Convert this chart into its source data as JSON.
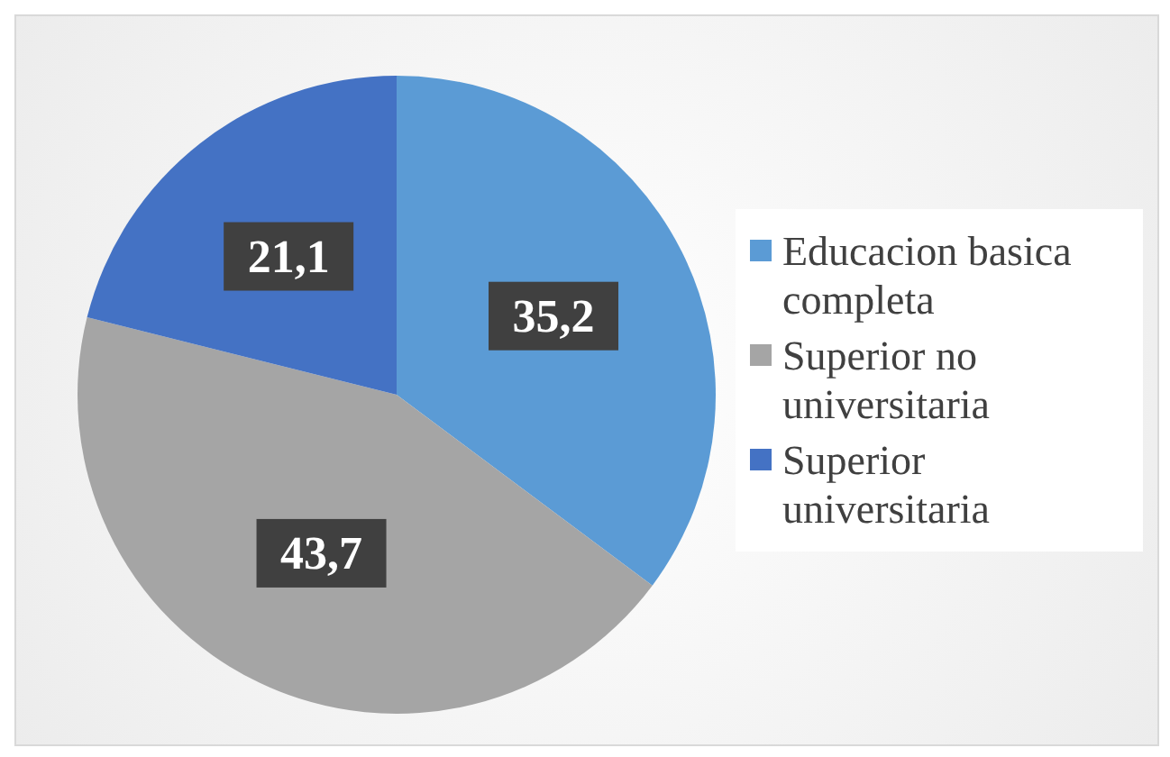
{
  "chart_data": {
    "type": "pie",
    "categories": [
      "Educacion basica completa",
      "Superior no universitaria",
      "Superior universitaria"
    ],
    "values": [
      35.2,
      43.7,
      21.1
    ],
    "value_labels": [
      "35,2",
      "43,7",
      "21,1"
    ],
    "colors": [
      "#5b9bd5",
      "#a5a5a5",
      "#4472c4"
    ],
    "legend": "right"
  }
}
